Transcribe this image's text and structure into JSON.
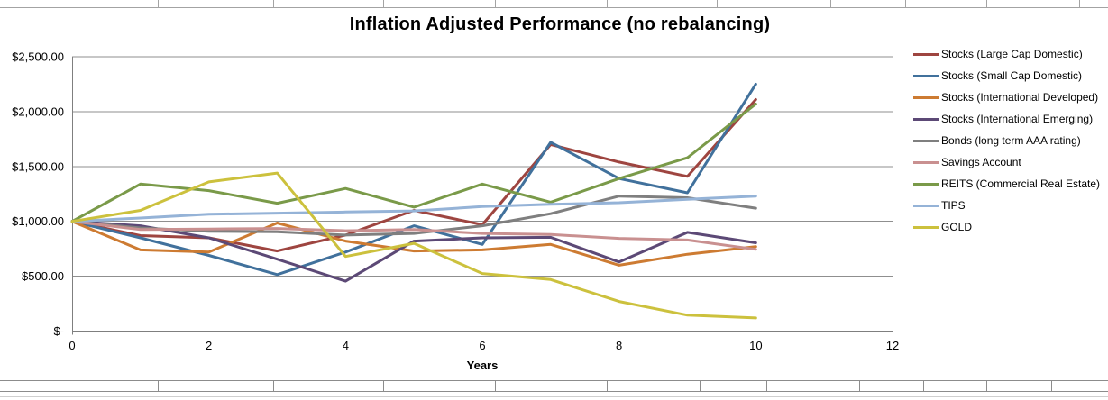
{
  "chart_data": {
    "type": "line",
    "title": "Inflation Adjusted Performance (no rebalancing)",
    "xlabel": "Years",
    "x": [
      0,
      1,
      2,
      3,
      4,
      5,
      6,
      7,
      8,
      9,
      10
    ],
    "xlim": [
      0,
      12
    ],
    "ylim": [
      0,
      2500
    ],
    "x_ticks": [
      {
        "value": 0,
        "label": "0"
      },
      {
        "value": 2,
        "label": "2"
      },
      {
        "value": 4,
        "label": "4"
      },
      {
        "value": 6,
        "label": "6"
      },
      {
        "value": 8,
        "label": "8"
      },
      {
        "value": 10,
        "label": "10"
      },
      {
        "value": 12,
        "label": "12"
      }
    ],
    "y_ticks": [
      {
        "value": 0,
        "label": "$-"
      },
      {
        "value": 500,
        "label": "$500.00"
      },
      {
        "value": 1000,
        "label": "$1,000.00"
      },
      {
        "value": 1500,
        "label": "$1,500.00"
      },
      {
        "value": 2000,
        "label": "$2,000.00"
      },
      {
        "value": 2500,
        "label": "$2,500.00"
      }
    ],
    "grid": "horizontal",
    "legend_position": "right",
    "series": [
      {
        "name": "Stocks (Large Cap Domestic)",
        "slug": "stocks-large-cap-domestic",
        "color": "#9E4540",
        "values": [
          1000,
          870,
          850,
          730,
          875,
          1100,
          970,
          1700,
          1540,
          1410,
          2110
        ]
      },
      {
        "name": "Stocks (Small Cap Domestic)",
        "slug": "stocks-small-cap-domestic",
        "color": "#41719C",
        "values": [
          1000,
          850,
          690,
          515,
          720,
          960,
          790,
          1720,
          1390,
          1260,
          2250
        ]
      },
      {
        "name": "Stocks (International Developed)",
        "slug": "stocks-international-developed",
        "color": "#CD7B32",
        "values": [
          1000,
          740,
          720,
          985,
          820,
          730,
          740,
          790,
          600,
          700,
          770
        ]
      },
      {
        "name": "Stocks (International Emerging)",
        "slug": "stocks-international-emerging",
        "color": "#5C4976",
        "values": [
          1000,
          960,
          850,
          655,
          455,
          820,
          850,
          855,
          630,
          900,
          805
        ]
      },
      {
        "name": "Bonds (long term AAA rating)",
        "slug": "bonds-long-term-aaa",
        "color": "#7F7F7F",
        "values": [
          1000,
          940,
          910,
          905,
          875,
          890,
          960,
          1070,
          1230,
          1215,
          1120
        ]
      },
      {
        "name": "Savings Account",
        "slug": "savings-account",
        "color": "#C99090",
        "values": [
          1000,
          925,
          930,
          935,
          915,
          925,
          890,
          880,
          845,
          830,
          745
        ]
      },
      {
        "name": "REITS (Commercial Real Estate)",
        "slug": "reits-commercial-real-estate",
        "color": "#7A9A49",
        "values": [
          1000,
          1340,
          1280,
          1165,
          1300,
          1130,
          1340,
          1175,
          1390,
          1580,
          2070
        ]
      },
      {
        "name": "TIPS",
        "slug": "tips",
        "color": "#95B3D7",
        "values": [
          1000,
          1030,
          1065,
          1075,
          1085,
          1095,
          1135,
          1155,
          1170,
          1200,
          1230
        ]
      },
      {
        "name": "GOLD",
        "slug": "gold",
        "color": "#CCC13D",
        "values": [
          1000,
          1100,
          1360,
          1440,
          680,
          800,
          525,
          470,
          270,
          145,
          120
        ]
      }
    ]
  }
}
